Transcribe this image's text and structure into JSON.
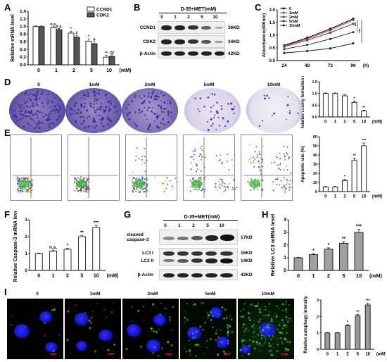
{
  "panels": {
    "A": "A",
    "B": "B",
    "C": "C",
    "D": "D",
    "E": "E",
    "F": "F",
    "G": "G",
    "H": "H",
    "I": "I"
  },
  "units": {
    "mM": "(mM)",
    "h": "(h)"
  },
  "blotB": {
    "title": "D-35+MET(mM)",
    "lanes": [
      "0",
      "1",
      "2",
      "5",
      "10"
    ],
    "rows": [
      {
        "name": "CCND1",
        "kd": "36KD"
      },
      {
        "name": "CDK2",
        "kd": "34KD"
      },
      {
        "name": "β-Actin",
        "kd": "42KD"
      }
    ]
  },
  "blotG": {
    "title": "D-35+MET(mM)",
    "lanes": [
      "0",
      "1",
      "2",
      "5",
      "10"
    ],
    "rows": [
      {
        "name": "cleaved caspase-3",
        "kd": "17KD"
      },
      {
        "name": "LC3 I",
        "kd": "16KD"
      },
      {
        "name": "LC3 II",
        "kd": "14KD"
      },
      {
        "name": "β-Actin",
        "kd": "42KD"
      }
    ]
  },
  "dishes": {
    "labels": [
      "0",
      "1mM",
      "2mM",
      "5mM",
      "10mM"
    ]
  },
  "micro": {
    "labels": [
      "0",
      "1mM",
      "2mM",
      "5mM",
      "10mM"
    ]
  },
  "chart_data": [
    {
      "panel": "A",
      "type": "bar",
      "categories": [
        "0",
        "1",
        "2",
        "5",
        "10"
      ],
      "xlabel": "(mM)",
      "ylabel": "Relative mRNA level",
      "ylim": [
        0,
        1.4
      ],
      "yticks": [
        "0.0",
        "0.2",
        "0.4",
        "0.6",
        "0.8",
        "1.0",
        "1.2",
        "1.4"
      ],
      "series": [
        {
          "name": "CCND1",
          "color": "#ffffff",
          "values": [
            1.0,
            0.97,
            0.83,
            0.62,
            0.2
          ],
          "err": [
            0.02,
            0.03,
            0.05,
            0.06,
            0.05
          ],
          "sig": [
            "",
            "n.s.",
            "*",
            "*",
            "**"
          ]
        },
        {
          "name": "CDK2",
          "color": "#555555",
          "values": [
            1.0,
            0.92,
            0.72,
            0.55,
            0.22
          ],
          "err": [
            0.02,
            0.03,
            0.05,
            0.05,
            0.04
          ],
          "sig": [
            "",
            "n.s.",
            "#",
            "#",
            "##"
          ]
        }
      ],
      "legend_position": "top-right"
    },
    {
      "panel": "C",
      "type": "line",
      "x": [
        "24",
        "48",
        "72",
        "96"
      ],
      "xlabel": "(h)",
      "ylabel": "Absorbance(490nm)",
      "ylim": [
        0.0,
        2.0
      ],
      "yticks": [
        "0.0",
        "0.5",
        "1.0",
        "1.5",
        "2.0"
      ],
      "series": [
        {
          "name": "0",
          "color": "#000000",
          "values": [
            0.6,
            0.9,
            1.25,
            1.65
          ]
        },
        {
          "name": "1mM",
          "color": "#d62020",
          "values": [
            0.58,
            0.85,
            1.2,
            1.6
          ]
        },
        {
          "name": "2mM",
          "color": "#2040d0",
          "values": [
            0.55,
            0.8,
            1.1,
            1.45
          ]
        },
        {
          "name": "5mM",
          "color": "#303030",
          "values": [
            0.45,
            0.62,
            0.85,
            1.12
          ]
        },
        {
          "name": "10mM",
          "color": "#202020",
          "values": [
            0.3,
            0.38,
            0.48,
            0.68
          ]
        }
      ],
      "sig": [
        "***",
        "***"
      ],
      "legend_position": "top-left"
    },
    {
      "panel": "D",
      "type": "bar",
      "categories": [
        "0",
        "1",
        "2",
        "5",
        "10"
      ],
      "xlabel": "(mM)",
      "ylabel": "Relative colony formation rate",
      "ylim": [
        0,
        1.5
      ],
      "yticks": [
        "0.0",
        "0.5",
        "1.0",
        "1.5"
      ],
      "values": [
        1.0,
        1.0,
        0.9,
        0.62,
        0.25
      ],
      "err": [
        0.02,
        0.02,
        0.04,
        0.05,
        0.04
      ],
      "sig": [
        "",
        "",
        "",
        "*",
        "**"
      ]
    },
    {
      "panel": "E",
      "type": "bar",
      "categories": [
        "0",
        "1",
        "2",
        "5",
        "10"
      ],
      "xlabel": "(mM)",
      "ylabel": "Apoptotic rate (%)",
      "ylim": [
        0,
        60
      ],
      "yticks": [
        "0",
        "10",
        "20",
        "30",
        "40",
        "50",
        "60"
      ],
      "values": [
        5,
        5,
        12,
        34,
        50
      ],
      "err": [
        0.5,
        0.6,
        1.5,
        2.5,
        3
      ],
      "sig": [
        "",
        "",
        "*",
        "**",
        "***"
      ]
    },
    {
      "panel": "F",
      "type": "bar",
      "categories": [
        "0",
        "1",
        "2",
        "5",
        "10"
      ],
      "xlabel": "(mM)",
      "ylabel": "Relative Caspase-3 mRNA level",
      "ylim": [
        0,
        3
      ],
      "yticks": [
        "0",
        "1",
        "2",
        "3"
      ],
      "values": [
        1.0,
        1.15,
        1.25,
        2.0,
        2.55
      ],
      "err": [
        0.03,
        0.05,
        0.06,
        0.08,
        0.12
      ],
      "sig": [
        "",
        "n.s.",
        "*",
        "**",
        "***"
      ]
    },
    {
      "panel": "H",
      "type": "bar",
      "categories": [
        "0",
        "1",
        "2",
        "5",
        "10"
      ],
      "xlabel": "(mM)",
      "ylabel": "Relative LC3 mRNA level",
      "ylim": [
        0,
        4
      ],
      "yticks": [
        "0",
        "1",
        "2",
        "3",
        "4"
      ],
      "values": [
        1.0,
        1.25,
        1.68,
        2.15,
        3.0
      ],
      "err": [
        0.03,
        0.08,
        0.1,
        0.12,
        0.25
      ],
      "sig": [
        "",
        "*",
        "*",
        "**",
        "***"
      ]
    },
    {
      "panel": "I",
      "type": "bar",
      "categories": [
        "0",
        "1",
        "2",
        "5",
        "10"
      ],
      "xlabel": "(mM)",
      "ylabel": "Relative autophagy intensity",
      "ylim": [
        0,
        3
      ],
      "yticks": [
        "0",
        "1",
        "2",
        "3"
      ],
      "values": [
        1.0,
        1.0,
        1.45,
        2.05,
        2.7
      ],
      "err": [
        0.02,
        0.02,
        0.05,
        0.07,
        0.1
      ],
      "sig": [
        "",
        "",
        "*",
        "**",
        "***"
      ]
    }
  ]
}
